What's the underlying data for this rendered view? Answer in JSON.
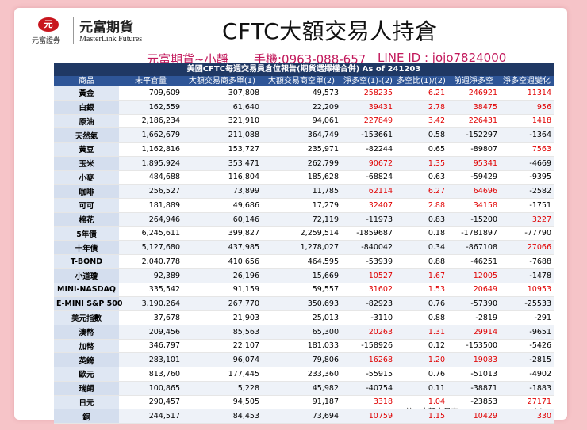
{
  "logo": {
    "seal": "元",
    "sub": "元富證券",
    "cn": "元富期貨",
    "en": "MasterLink Futures"
  },
  "title": "CFTC大額交易人持倉",
  "contact": {
    "name": "元富期貨~小靜",
    "phone": "手機:0963-088-657",
    "line": "LINE ID : jojo7824000"
  },
  "table": {
    "caption": "美國CFTC每週交易員倉位報告(期貨選擇權合併) As of  241203",
    "headers": [
      "商品",
      "未平倉量",
      "大額交易商多單(1)",
      "大額交易商空單(2)",
      "淨多空(1)-(2)",
      "多空比(1)/(2)",
      "前週淨多空",
      "淨多空週變化"
    ],
    "rows": [
      [
        "黃金",
        "709,609",
        "307,808",
        "49,573",
        "258235",
        "6.21",
        "246921",
        "11314"
      ],
      [
        "白銀",
        "162,559",
        "61,640",
        "22,209",
        "39431",
        "2.78",
        "38475",
        "956"
      ],
      [
        "原油",
        "2,186,234",
        "321,910",
        "94,061",
        "227849",
        "3.42",
        "226431",
        "1418"
      ],
      [
        "天然氣",
        "1,662,679",
        "211,088",
        "364,749",
        "-153661",
        "0.58",
        "-152297",
        "-1364"
      ],
      [
        "黃豆",
        "1,162,816",
        "153,727",
        "235,971",
        "-82244",
        "0.65",
        "-89807",
        "7563"
      ],
      [
        "玉米",
        "1,895,924",
        "353,471",
        "262,799",
        "90672",
        "1.35",
        "95341",
        "-4669"
      ],
      [
        "小麥",
        "484,688",
        "116,804",
        "185,628",
        "-68824",
        "0.63",
        "-59429",
        "-9395"
      ],
      [
        "咖啡",
        "256,527",
        "73,899",
        "11,785",
        "62114",
        "6.27",
        "64696",
        "-2582"
      ],
      [
        "可可",
        "181,889",
        "49,686",
        "17,279",
        "32407",
        "2.88",
        "34158",
        "-1751"
      ],
      [
        "棉花",
        "264,946",
        "60,146",
        "72,119",
        "-11973",
        "0.83",
        "-15200",
        "3227"
      ],
      [
        "5年債",
        "6,245,611",
        "399,827",
        "2,259,514",
        "-1859687",
        "0.18",
        "-1781897",
        "-77790"
      ],
      [
        "十年債",
        "5,127,680",
        "437,985",
        "1,278,027",
        "-840042",
        "0.34",
        "-867108",
        "27066"
      ],
      [
        "T-BOND",
        "2,040,778",
        "410,656",
        "464,595",
        "-53939",
        "0.88",
        "-46251",
        "-7688"
      ],
      [
        "小道瓊",
        "92,389",
        "26,196",
        "15,669",
        "10527",
        "1.67",
        "12005",
        "-1478"
      ],
      [
        "MINI-NASDAQ",
        "335,542",
        "91,159",
        "59,557",
        "31602",
        "1.53",
        "20649",
        "10953"
      ],
      [
        "E-MINI S&P 500",
        "3,190,264",
        "267,770",
        "350,693",
        "-82923",
        "0.76",
        "-57390",
        "-25533"
      ],
      [
        "美元指數",
        "37,678",
        "21,903",
        "25,013",
        "-3110",
        "0.88",
        "-2819",
        "-291"
      ],
      [
        "澳幣",
        "209,456",
        "85,563",
        "65,300",
        "20263",
        "1.31",
        "29914",
        "-9651"
      ],
      [
        "加幣",
        "346,797",
        "22,107",
        "181,033",
        "-158926",
        "0.12",
        "-153500",
        "-5426"
      ],
      [
        "英鎊",
        "283,101",
        "96,074",
        "79,806",
        "16268",
        "1.20",
        "19083",
        "-2815"
      ],
      [
        "歐元",
        "813,760",
        "177,445",
        "233,360",
        "-55915",
        "0.76",
        "-51013",
        "-4902"
      ],
      [
        "瑞朗",
        "100,865",
        "5,228",
        "45,982",
        "-40754",
        "0.11",
        "-38871",
        "-1883"
      ],
      [
        "日元",
        "290,457",
        "94,505",
        "91,187",
        "3318",
        "1.04",
        "-23853",
        "27171"
      ],
      [
        "銅",
        "244,517",
        "84,453",
        "73,694",
        "10759",
        "1.15",
        "10429",
        "330"
      ]
    ],
    "footnote": "註：大額交易商 Non-Commerce Position"
  },
  "colors": {
    "background": "#f6c4c8",
    "header_dark": "#1f3864",
    "header": "#2e5597",
    "positive": "#e00000",
    "accent": "#c2185b"
  }
}
